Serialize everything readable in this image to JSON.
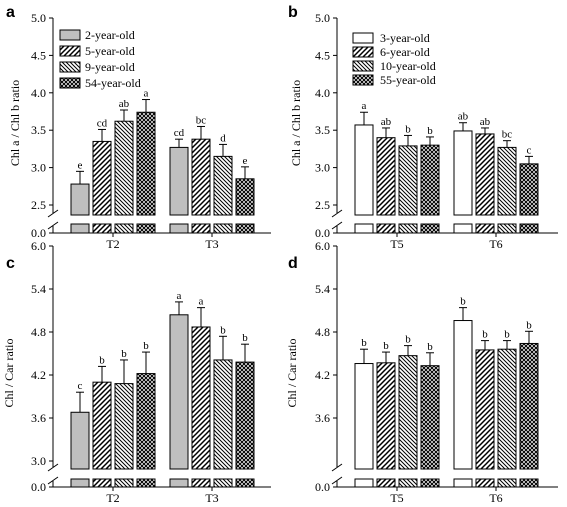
{
  "chart_data": [
    {
      "type": "bar",
      "panel": "a",
      "ylabel": "Chl a / Chl b ratio",
      "ylim": [
        2.5,
        5.0
      ],
      "y_break": true,
      "y_break_base": 0.0,
      "yticks": [
        2.5,
        3.0,
        3.5,
        4.0,
        4.5,
        5.0
      ],
      "tick_labels": [
        "2.5",
        "3.0",
        "3.5",
        "4.0",
        "4.5",
        "5.0"
      ],
      "base_label": "0.0",
      "categories": [
        "T2",
        "T3"
      ],
      "legend_position": "top-left",
      "series": [
        {
          "name": "2-year-old",
          "pattern": "solid-gray",
          "values": [
            2.78,
            3.27
          ],
          "errors": [
            0.17,
            0.11
          ],
          "letters": [
            "e",
            "cd"
          ]
        },
        {
          "name": "5-year-old",
          "pattern": "diag-right",
          "values": [
            3.35,
            3.38
          ],
          "errors": [
            0.16,
            0.17
          ],
          "letters": [
            "cd",
            "bc"
          ]
        },
        {
          "name": "9-year-old",
          "pattern": "diag-left",
          "values": [
            3.62,
            3.15
          ],
          "errors": [
            0.15,
            0.16
          ],
          "letters": [
            "ab",
            "d"
          ]
        },
        {
          "name": "54-year-old",
          "pattern": "cross",
          "values": [
            3.74,
            2.85
          ],
          "errors": [
            0.17,
            0.16
          ],
          "letters": [
            "a",
            "e"
          ]
        }
      ]
    },
    {
      "type": "bar",
      "panel": "b",
      "ylabel": "Chl a / Chl b ratio",
      "ylim": [
        2.5,
        5.0
      ],
      "y_break": true,
      "y_break_base": 0.0,
      "yticks": [
        2.5,
        3.0,
        3.5,
        4.0,
        4.5,
        5.0
      ],
      "tick_labels": [
        "2.5",
        "3.0",
        "3.5",
        "4.0",
        "4.5",
        "5.0"
      ],
      "base_label": "0.0",
      "categories": [
        "T5",
        "T6"
      ],
      "legend_position": "top-left",
      "series": [
        {
          "name": "3-year-old",
          "pattern": "white",
          "values": [
            3.57,
            3.49
          ],
          "errors": [
            0.17,
            0.11
          ],
          "letters": [
            "a",
            "ab"
          ]
        },
        {
          "name": "6-year-old",
          "pattern": "diag-right",
          "values": [
            3.4,
            3.45
          ],
          "errors": [
            0.13,
            0.08
          ],
          "letters": [
            "ab",
            "ab"
          ]
        },
        {
          "name": "10-year-old",
          "pattern": "diag-left",
          "values": [
            3.29,
            3.27
          ],
          "errors": [
            0.14,
            0.09
          ],
          "letters": [
            "b",
            "bc"
          ]
        },
        {
          "name": "55-year-old",
          "pattern": "cross",
          "values": [
            3.3,
            3.05
          ],
          "errors": [
            0.11,
            0.1
          ],
          "letters": [
            "b",
            "c"
          ]
        }
      ]
    },
    {
      "type": "bar",
      "panel": "c",
      "ylabel": "Chl / Car ratio",
      "ylim": [
        3.0,
        6.0
      ],
      "y_break": true,
      "y_break_base": 0.0,
      "yticks": [
        3.0,
        3.6,
        4.2,
        4.8,
        5.4,
        6.0
      ],
      "tick_labels": [
        "3.0",
        "3.6",
        "4.2",
        "4.8",
        "5.4",
        "6.0"
      ],
      "base_label": "0.0",
      "categories": [
        "T2",
        "T3"
      ],
      "series": [
        {
          "name": "2-year-old",
          "pattern": "solid-gray",
          "values": [
            3.68,
            5.04
          ],
          "errors": [
            0.28,
            0.18
          ],
          "letters": [
            "c",
            "a"
          ]
        },
        {
          "name": "5-year-old",
          "pattern": "diag-right",
          "values": [
            4.1,
            4.87
          ],
          "errors": [
            0.22,
            0.27
          ],
          "letters": [
            "b",
            "a"
          ]
        },
        {
          "name": "9-year-old",
          "pattern": "diag-left",
          "values": [
            4.08,
            4.41
          ],
          "errors": [
            0.33,
            0.33
          ],
          "letters": [
            "b",
            "b"
          ]
        },
        {
          "name": "54-year-old",
          "pattern": "cross",
          "values": [
            4.22,
            4.38
          ],
          "errors": [
            0.3,
            0.25
          ],
          "letters": [
            "b",
            "b"
          ]
        }
      ]
    },
    {
      "type": "bar",
      "panel": "d",
      "ylabel": "Chl / Car ratio",
      "ylim": [
        3.0,
        6.0
      ],
      "y_break": true,
      "y_break_base": 0.0,
      "yticks": [
        3.6,
        4.2,
        4.8,
        5.4,
        6.0
      ],
      "tick_labels": [
        "3.6",
        "4.2",
        "4.8",
        "5.4",
        "6.0"
      ],
      "base_label": "0.0",
      "categories": [
        "T5",
        "T6"
      ],
      "series": [
        {
          "name": "3-year-old",
          "pattern": "white",
          "values": [
            4.36,
            4.96
          ],
          "errors": [
            0.2,
            0.18
          ],
          "letters": [
            "b",
            "b"
          ]
        },
        {
          "name": "6-year-old",
          "pattern": "diag-right",
          "values": [
            4.37,
            4.55
          ],
          "errors": [
            0.15,
            0.13
          ],
          "letters": [
            "b",
            "b"
          ]
        },
        {
          "name": "10-year-old",
          "pattern": "diag-left",
          "values": [
            4.47,
            4.56
          ],
          "errors": [
            0.14,
            0.12
          ],
          "letters": [
            "b",
            "b"
          ]
        },
        {
          "name": "55-year-old",
          "pattern": "cross",
          "values": [
            4.33,
            4.64
          ],
          "errors": [
            0.18,
            0.17
          ],
          "letters": [
            "b",
            "b"
          ]
        }
      ]
    }
  ]
}
